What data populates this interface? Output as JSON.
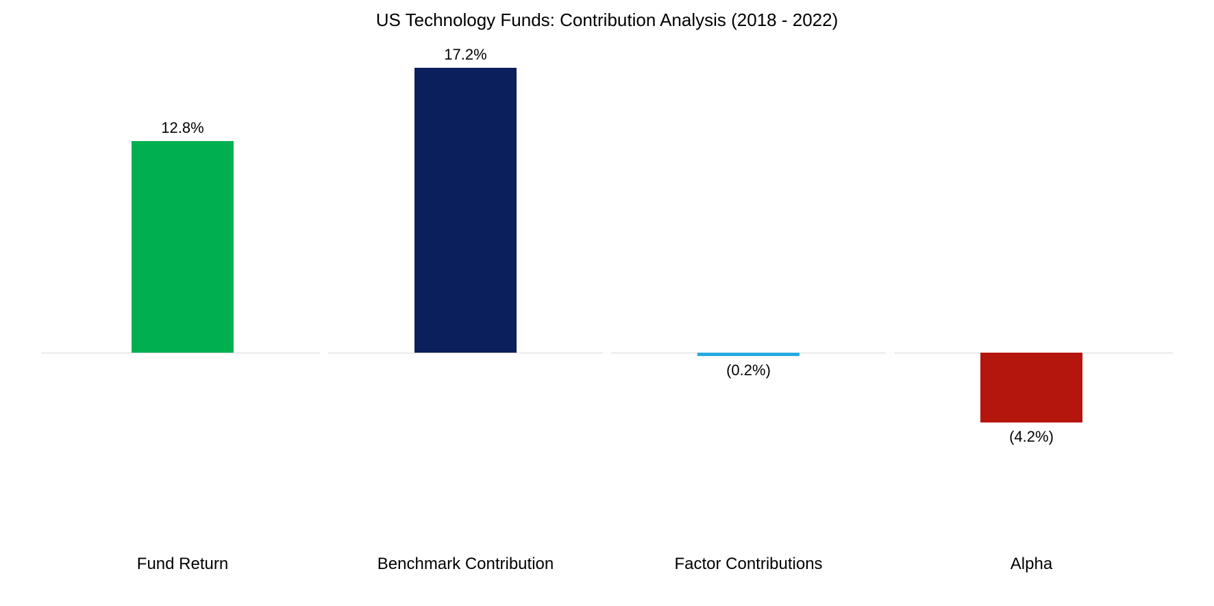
{
  "chart": {
    "type": "bar",
    "title": "US Technology Funds: Contribution Analysis (2018 - 2022)",
    "title_fontsize": 26,
    "title_color": "#000000",
    "background_color": "#ffffff",
    "axis_line_color": "#d9d9d9",
    "col_divider_color": "#e6e6e6",
    "label_fontsize": 22,
    "category_fontsize": 24,
    "label_color": "#000000",
    "ylim": [
      -6,
      18
    ],
    "baseline": 0,
    "bar_width_ratio": 0.36,
    "categories": [
      "Fund Return",
      "Benchmark Contribution",
      "Factor Contributions",
      "Alpha"
    ],
    "values": [
      12.8,
      17.2,
      -0.2,
      -4.2
    ],
    "display_labels": [
      "12.8%",
      "17.2%",
      "(0.2%)",
      "(4.2%)"
    ],
    "bar_colors": [
      "#00b050",
      "#0a1f5c",
      "#29a9e0",
      "#b4150c"
    ]
  }
}
